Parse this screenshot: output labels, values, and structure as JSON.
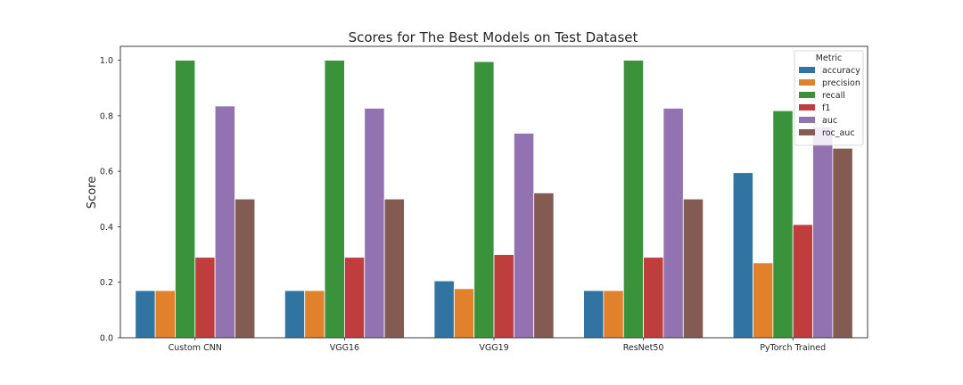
{
  "chart_data": {
    "type": "bar",
    "title": "Scores for The Best Models on Test Dataset",
    "xlabel": "",
    "ylabel": "Score",
    "ylim": [
      0,
      1.05
    ],
    "yticks": [
      "0.0",
      "0.2",
      "0.4",
      "0.6",
      "0.8",
      "1.0"
    ],
    "grid": false,
    "legend_title": "Metric",
    "legend_position": "top-right",
    "categories": [
      "Custom CNN",
      "VGG16",
      "VGG19",
      "ResNet50",
      "PyTorch Trained"
    ],
    "series": [
      {
        "name": "accuracy",
        "color": "#3274a1",
        "values": [
          0.17,
          0.17,
          0.205,
          0.17,
          0.595
        ]
      },
      {
        "name": "precision",
        "color": "#e1812c",
        "values": [
          0.17,
          0.17,
          0.177,
          0.17,
          0.27
        ]
      },
      {
        "name": "recall",
        "color": "#3a923a",
        "values": [
          1.0,
          1.0,
          0.995,
          1.0,
          0.818
        ]
      },
      {
        "name": "f1",
        "color": "#c03d3e",
        "values": [
          0.29,
          0.29,
          0.3,
          0.29,
          0.408
        ]
      },
      {
        "name": "auc",
        "color": "#9372b2",
        "values": [
          0.835,
          0.827,
          0.737,
          0.827,
          0.76
        ]
      },
      {
        "name": "roc_auc",
        "color": "#845b53",
        "values": [
          0.5,
          0.5,
          0.522,
          0.5,
          0.683
        ]
      }
    ]
  }
}
